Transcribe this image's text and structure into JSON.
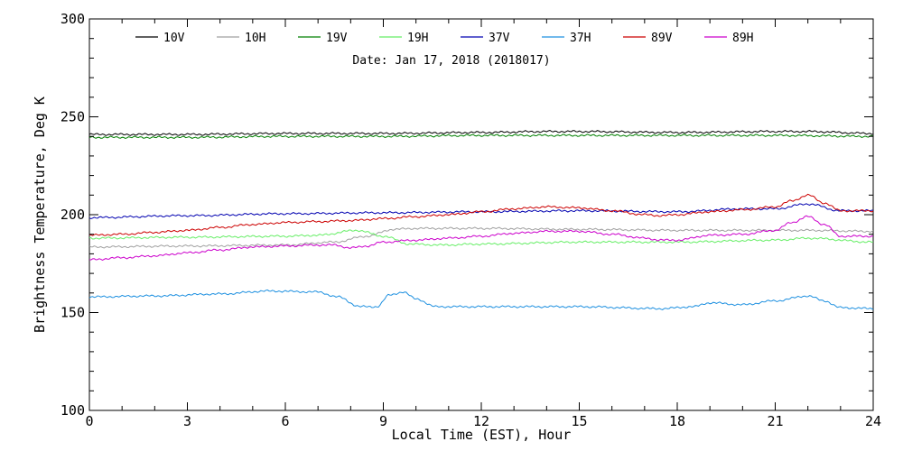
{
  "chart_data": {
    "type": "line",
    "title": "",
    "annotation": "Date: Jan 17, 2018 (2018017)",
    "xlabel": "Local Time (EST), Hour",
    "ylabel": "Brightness Temperature, Deg K",
    "xlim": [
      0,
      24
    ],
    "ylim": [
      100,
      300
    ],
    "xticks": [
      0,
      3,
      6,
      9,
      12,
      15,
      18,
      21,
      24
    ],
    "xtick_labels": [
      "0",
      "3",
      "6",
      "9",
      "12",
      "15",
      "18",
      "21",
      "24"
    ],
    "yticks": [
      100,
      150,
      200,
      250,
      300
    ],
    "ytick_labels": [
      "100",
      "150",
      "200",
      "250",
      "300"
    ],
    "grid": false,
    "legend_position": "top",
    "series": [
      {
        "name": "10V",
        "color": "#000000",
        "x": [
          0,
          3,
          6,
          9,
          12,
          14,
          15,
          18,
          21,
          22,
          24
        ],
        "y": [
          241,
          241,
          241.5,
          241.5,
          242,
          242.5,
          242.5,
          242,
          242.5,
          242.5,
          241.5
        ]
      },
      {
        "name": "10H",
        "color": "#a0a0a0",
        "x": [
          0,
          3,
          6,
          7.5,
          8.5,
          9.3,
          10,
          12,
          15,
          18,
          21,
          22,
          24
        ],
        "y": [
          183.5,
          184,
          184.5,
          186,
          189,
          192.5,
          193,
          193,
          192.5,
          192,
          192,
          192,
          191.5
        ]
      },
      {
        "name": "19V",
        "color": "#007f00",
        "x": [
          0,
          3,
          6,
          9,
          12,
          15,
          18,
          21,
          24
        ],
        "y": [
          239.5,
          239.5,
          240,
          240,
          240.5,
          240.5,
          240.5,
          240.5,
          240
        ]
      },
      {
        "name": "19H",
        "color": "#66ee66",
        "x": [
          0,
          3,
          6,
          7,
          8.2,
          9,
          9.8,
          10.8,
          12,
          15,
          18,
          21,
          22,
          24
        ],
        "y": [
          188,
          188.5,
          189,
          189.5,
          192,
          189,
          185,
          184.5,
          185,
          186,
          186,
          187,
          188,
          186
        ]
      },
      {
        "name": "37V",
        "color": "#0000b0",
        "x": [
          0,
          3,
          6,
          9,
          12,
          15,
          18,
          20,
          21,
          22,
          23,
          24
        ],
        "y": [
          198.5,
          199.5,
          200.5,
          201,
          201.5,
          202,
          201.5,
          203,
          203,
          205.5,
          202,
          202
        ]
      },
      {
        "name": "37H",
        "color": "#1e90e0",
        "x": [
          0,
          2,
          4,
          5.5,
          7,
          7.6,
          8.3,
          8.8,
          9.2,
          9.6,
          10,
          10.6,
          12,
          15,
          17.5,
          18.5,
          19,
          20,
          21,
          22,
          22.5,
          23,
          24
        ],
        "y": [
          158,
          158.5,
          159.5,
          161,
          160.5,
          158,
          153,
          153,
          159,
          160.5,
          157,
          153,
          153,
          153,
          152,
          153,
          155,
          154,
          156,
          158.5,
          156,
          152.5,
          152
        ]
      },
      {
        "name": "89V",
        "color": "#cc0000",
        "x": [
          0,
          1,
          2,
          3,
          4,
          5,
          6,
          7,
          8,
          9,
          10,
          11,
          12,
          13,
          14,
          15,
          16,
          17,
          17.5,
          18,
          19,
          20,
          21,
          21.5,
          22,
          22.5,
          23,
          24
        ],
        "y": [
          189.5,
          190,
          191,
          192,
          193.5,
          195,
          196,
          196.5,
          197,
          198,
          199,
          200,
          201.5,
          203,
          204,
          203.5,
          202,
          200,
          199.5,
          200,
          201.5,
          202.5,
          204,
          207,
          210,
          206,
          202,
          202
        ]
      },
      {
        "name": "89H",
        "color": "#cc00cc",
        "x": [
          0,
          1,
          2,
          3,
          4,
          5,
          6,
          7,
          7.5,
          8,
          8.5,
          9,
          10,
          11,
          12,
          13,
          14,
          15,
          16,
          17,
          17.5,
          18,
          19,
          20,
          21,
          21.5,
          22,
          22.5,
          23,
          24
        ],
        "y": [
          177,
          178,
          179,
          180.5,
          182,
          183.5,
          184,
          184.5,
          184.5,
          183,
          184,
          186,
          187,
          188,
          189,
          190.5,
          191.5,
          191.5,
          190,
          188,
          187,
          187,
          189.5,
          190,
          192,
          196,
          199,
          195,
          189,
          189
        ]
      }
    ]
  }
}
